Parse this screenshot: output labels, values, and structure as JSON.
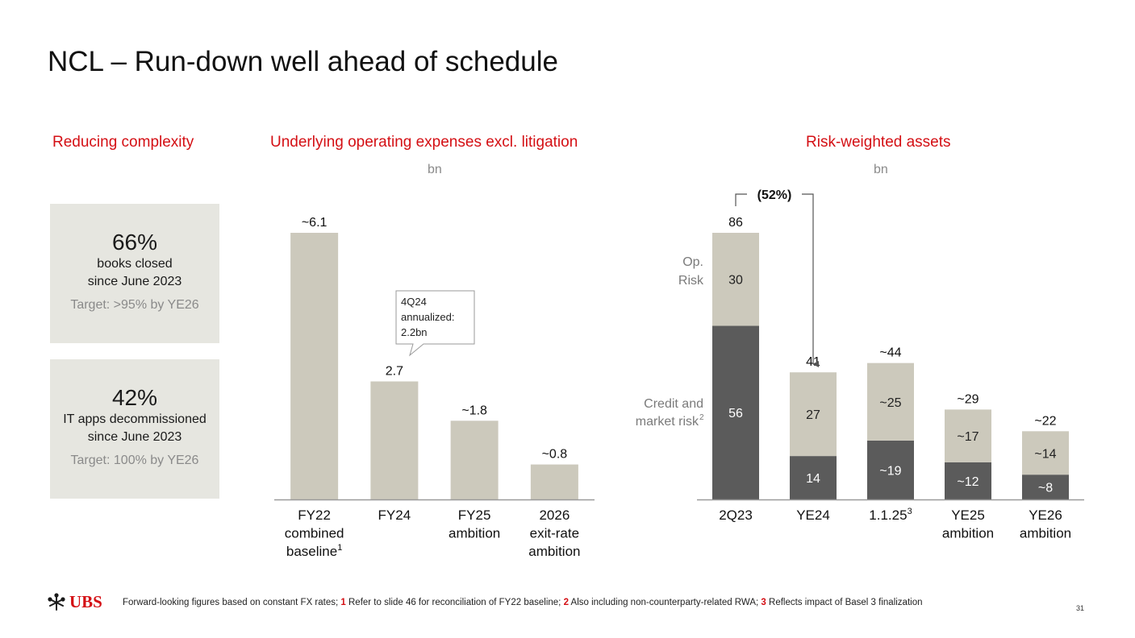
{
  "page": {
    "title": "NCL – Run-down well ahead of schedule",
    "page_number": "31"
  },
  "left": {
    "section_title": "Reducing complexity",
    "stats": [
      {
        "value": "66%",
        "desc1": "books closed",
        "desc2": "since June 2023",
        "target": "Target: >95% by YE26"
      },
      {
        "value": "42%",
        "desc1": "IT apps decommissioned",
        "desc2": "since June 2023",
        "target": "Target: 100% by YE26"
      }
    ]
  },
  "opex": {
    "section_title": "Underlying operating expenses excl. litigation",
    "unit": "bn",
    "callout": [
      "4Q24",
      "annualized:",
      "2.2bn"
    ]
  },
  "rwa": {
    "section_title": "Risk-weighted assets",
    "unit": "bn",
    "change_label": "(52%)",
    "row_labels": {
      "op_risk": [
        "Op.",
        "Risk"
      ],
      "credit": [
        "Credit and",
        "market risk"
      ],
      "credit_sup": "2"
    }
  },
  "footer": {
    "logo_text": "UBS",
    "note_intro": "Forward-looking figures based on constant FX rates; ",
    "n1_num": "1",
    "n1_text": " Refer to slide 46 for reconciliation of FY22 baseline; ",
    "n2_num": "2",
    "n2_text": " Also including non-counterparty-related RWA; ",
    "n3_num": "3",
    "n3_text": " Reflects impact of Basel 3 finalization"
  },
  "colors": {
    "accent_red": "#d40f14",
    "bar_light": "#ccc9bc",
    "bar_dark": "#5b5b5b",
    "box_bg": "#e6e6e0"
  },
  "chart_data": [
    {
      "type": "bar",
      "title": "Underlying operating expenses excl. litigation",
      "ylabel": "bn",
      "categories": [
        {
          "lines": [
            "FY22",
            "combined",
            "baseline"
          ],
          "sup": "1"
        },
        {
          "lines": [
            "FY24"
          ],
          "sup": ""
        },
        {
          "lines": [
            "FY25",
            "ambition"
          ],
          "sup": ""
        },
        {
          "lines": [
            "2026",
            "exit-rate",
            "ambition"
          ],
          "sup": ""
        }
      ],
      "values": [
        6.1,
        2.7,
        1.8,
        0.8
      ],
      "value_labels": [
        "~6.1",
        "2.7",
        "~1.8",
        "~0.8"
      ],
      "ylim": [
        0,
        6.1
      ]
    },
    {
      "type": "bar",
      "stacked": true,
      "title": "Risk-weighted assets",
      "ylabel": "bn",
      "categories": [
        {
          "lines": [
            "2Q23"
          ],
          "sup": ""
        },
        {
          "lines": [
            "YE24"
          ],
          "sup": ""
        },
        {
          "lines": [
            "1.1.25"
          ],
          "sup": "3"
        },
        {
          "lines": [
            "YE25",
            "ambition"
          ],
          "sup": ""
        },
        {
          "lines": [
            "YE26",
            "ambition"
          ],
          "sup": ""
        }
      ],
      "series": [
        {
          "name": "Credit and market risk",
          "values": [
            56,
            14,
            19,
            12,
            8
          ],
          "labels": [
            "56",
            "14",
            "~19",
            "~12",
            "~8"
          ]
        },
        {
          "name": "Op. Risk",
          "values": [
            30,
            27,
            25,
            17,
            14
          ],
          "labels": [
            "30",
            "27",
            "~25",
            "~17",
            "~14"
          ]
        }
      ],
      "total_labels": [
        "86",
        "41",
        "~44",
        "~29",
        "~22"
      ],
      "ylim": [
        0,
        86
      ]
    }
  ]
}
